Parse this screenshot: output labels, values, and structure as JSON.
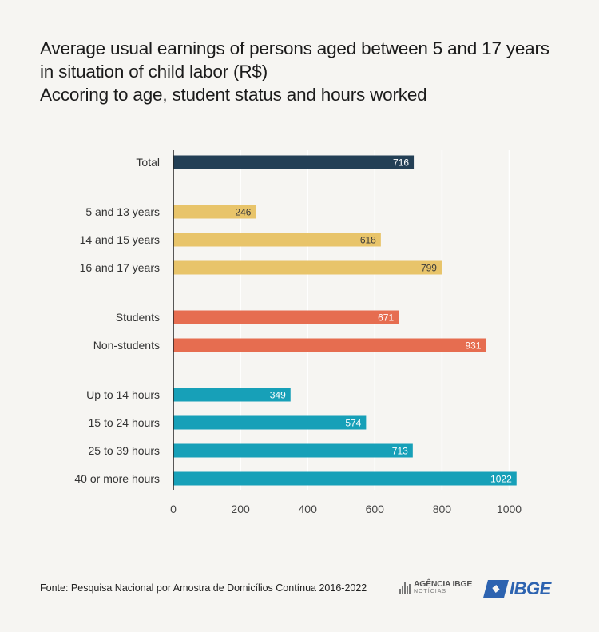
{
  "header": {
    "title_line1": "Average usual earnings of persons aged between 5 and 17 years",
    "title_line2": "in situation of child labor (R$)",
    "subtitle": "Accoring to age, student status and hours worked"
  },
  "chart_data": {
    "type": "bar",
    "orientation": "horizontal",
    "title": "Average usual earnings of persons aged between 5 and 17 years in situation of child labor (R$)",
    "subtitle": "Accoring to age, student status and hours worked",
    "xlabel": "",
    "ylabel": "",
    "xlim": [
      0,
      1000
    ],
    "x_ticks": [
      0,
      200,
      400,
      600,
      800,
      1000
    ],
    "grid": true,
    "categories": [
      "Total",
      "5 and 13 years",
      "14 and 15 years",
      "16 and 17 years",
      "Students",
      "Non-students",
      "Up to 14 hours",
      "15 to 24 hours",
      "25 to 39 hours",
      "40 or more hours"
    ],
    "values": [
      716,
      246,
      618,
      799,
      671,
      931,
      349,
      574,
      713,
      1022
    ],
    "groups": [
      0,
      1,
      1,
      1,
      2,
      2,
      3,
      3,
      3,
      3
    ],
    "group_colors": [
      "#233f55",
      "#e8c46a",
      "#e66d50",
      "#17a0b8"
    ],
    "label_colors": [
      "#ffffff",
      "#3a3a3a",
      "#ffffff",
      "#ffffff"
    ]
  },
  "footer": {
    "source": "Fonte: Pesquisa Nacional por Amostra de Domicílios Contínua 2016-2022"
  },
  "logos": {
    "agencia_main": "AGÊNCIA IBGE",
    "agencia_sub": "NOTÍCIAS",
    "ibge": "IBGE"
  }
}
